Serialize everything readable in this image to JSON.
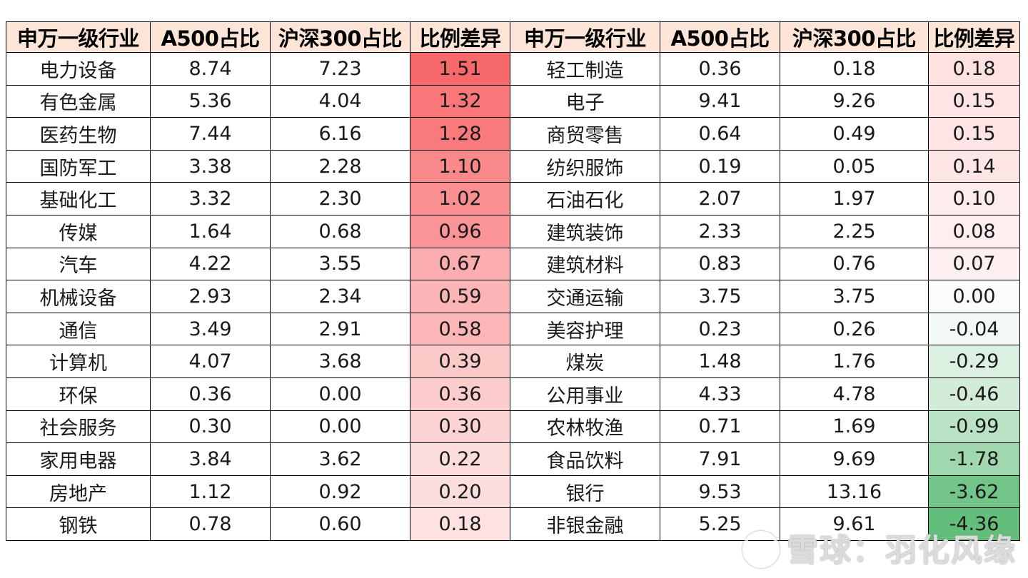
{
  "headers": [
    "申万一级行业",
    "A500占比",
    "沪深300占比",
    "比例差异",
    "申万一级行业",
    "A500占比",
    "沪深300占比",
    "比例差异"
  ],
  "left": [
    {
      "industry": "电力设备",
      "a500": "8.74",
      "hs300": "7.23",
      "diff": "1.51"
    },
    {
      "industry": "有色金属",
      "a500": "5.36",
      "hs300": "4.04",
      "diff": "1.32"
    },
    {
      "industry": "医药生物",
      "a500": "7.44",
      "hs300": "6.16",
      "diff": "1.28"
    },
    {
      "industry": "国防军工",
      "a500": "3.38",
      "hs300": "2.28",
      "diff": "1.10"
    },
    {
      "industry": "基础化工",
      "a500": "3.32",
      "hs300": "2.30",
      "diff": "1.02"
    },
    {
      "industry": "传媒",
      "a500": "1.64",
      "hs300": "0.68",
      "diff": "0.96"
    },
    {
      "industry": "汽车",
      "a500": "4.22",
      "hs300": "3.55",
      "diff": "0.67"
    },
    {
      "industry": "机械设备",
      "a500": "2.93",
      "hs300": "2.34",
      "diff": "0.59"
    },
    {
      "industry": "通信",
      "a500": "3.49",
      "hs300": "2.91",
      "diff": "0.58"
    },
    {
      "industry": "计算机",
      "a500": "4.07",
      "hs300": "3.68",
      "diff": "0.39"
    },
    {
      "industry": "环保",
      "a500": "0.36",
      "hs300": "0.00",
      "diff": "0.36"
    },
    {
      "industry": "社会服务",
      "a500": "0.30",
      "hs300": "0.00",
      "diff": "0.30"
    },
    {
      "industry": "家用电器",
      "a500": "3.84",
      "hs300": "3.62",
      "diff": "0.22"
    },
    {
      "industry": "房地产",
      "a500": "1.12",
      "hs300": "0.92",
      "diff": "0.20"
    },
    {
      "industry": "钢铁",
      "a500": "0.78",
      "hs300": "0.60",
      "diff": "0.18"
    }
  ],
  "right": [
    {
      "industry": "轻工制造",
      "a500": "0.36",
      "hs300": "0.18",
      "diff": "0.18"
    },
    {
      "industry": "电子",
      "a500": "9.41",
      "hs300": "9.26",
      "diff": "0.15"
    },
    {
      "industry": "商贸零售",
      "a500": "0.64",
      "hs300": "0.49",
      "diff": "0.15"
    },
    {
      "industry": "纺织服饰",
      "a500": "0.19",
      "hs300": "0.05",
      "diff": "0.14"
    },
    {
      "industry": "石油石化",
      "a500": "2.07",
      "hs300": "1.97",
      "diff": "0.10"
    },
    {
      "industry": "建筑装饰",
      "a500": "2.33",
      "hs300": "2.25",
      "diff": "0.08"
    },
    {
      "industry": "建筑材料",
      "a500": "0.83",
      "hs300": "0.76",
      "diff": "0.07"
    },
    {
      "industry": "交通运输",
      "a500": "3.75",
      "hs300": "3.75",
      "diff": "0.00"
    },
    {
      "industry": "美容护理",
      "a500": "0.23",
      "hs300": "0.26",
      "diff": "-0.04"
    },
    {
      "industry": "煤炭",
      "a500": "1.48",
      "hs300": "1.76",
      "diff": "-0.29"
    },
    {
      "industry": "公用事业",
      "a500": "4.33",
      "hs300": "4.78",
      "diff": "-0.46"
    },
    {
      "industry": "农林牧渔",
      "a500": "0.71",
      "hs300": "1.69",
      "diff": "-0.99"
    },
    {
      "industry": "食品饮料",
      "a500": "7.91",
      "hs300": "9.69",
      "diff": "-1.78"
    },
    {
      "industry": "银行",
      "a500": "9.53",
      "hs300": "13.16",
      "diff": "-3.62"
    },
    {
      "industry": "非银金融",
      "a500": "5.25",
      "hs300": "9.61",
      "diff": "-4.36"
    }
  ],
  "colors": {
    "header_bg": "#fce4d6",
    "positive_max": "#f8696b",
    "negative_max": "#63be7b"
  },
  "watermark": "雪球：羽化风缘"
}
